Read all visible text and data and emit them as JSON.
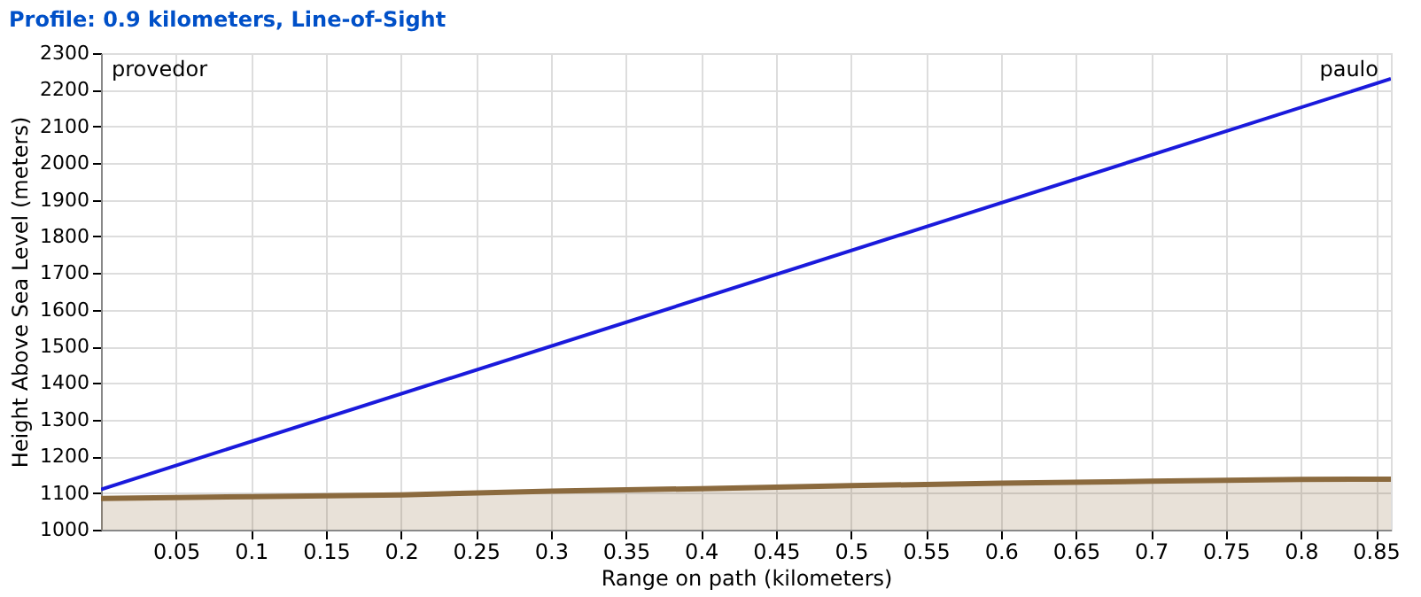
{
  "chart_data": {
    "type": "line",
    "title": "Profile: 0.9 kilometers, Line-of-Sight",
    "xlabel": "Range on path (kilometers)",
    "ylabel": "Height Above Sea Level (meters)",
    "x": [
      0,
      0.1,
      0.2,
      0.3,
      0.4,
      0.5,
      0.6,
      0.7,
      0.8,
      0.86
    ],
    "series": [
      {
        "type": "area",
        "color": "#8b6a3e",
        "values": [
          1085,
          1090,
          1095,
          1105,
          1112,
          1120,
          1127,
          1132,
          1137,
          1138
        ]
      },
      {
        "color": "#1a1adc",
        "x": [
          0,
          0.86
        ],
        "values": [
          1110,
          2230
        ]
      }
    ],
    "annotations": [
      "provedor",
      "paulo"
    ],
    "xlim": [
      0,
      0.86
    ],
    "xticks": [
      0.05,
      0.1,
      0.15,
      0.2,
      0.25,
      0.3,
      0.35,
      0.4,
      0.45,
      0.5,
      0.55,
      0.6,
      0.65,
      0.7,
      0.75,
      0.8,
      0.85
    ],
    "ylim": [
      1000,
      2300
    ],
    "yticks": [
      1000,
      1100,
      1200,
      1300,
      1400,
      1500,
      1600,
      1700,
      1800,
      1900,
      2000,
      2100,
      2200,
      2300
    ],
    "grid": true
  }
}
